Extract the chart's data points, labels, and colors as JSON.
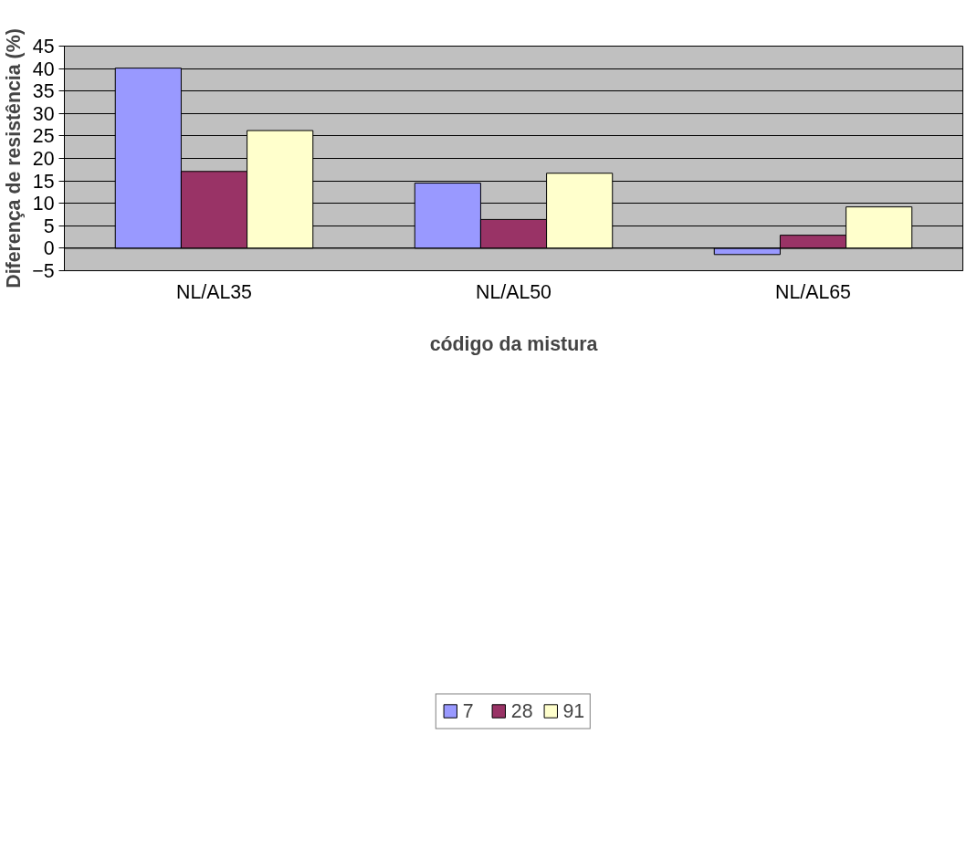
{
  "chart_data": {
    "type": "bar",
    "xlabel": "código da mistura",
    "ylabel": "Diferença de resistência (%)",
    "categories": [
      "NL/AL35",
      "NL/AL50",
      "NL/AL65"
    ],
    "series": [
      {
        "name": "7",
        "color": "#9999ff",
        "values": [
          40.1,
          14.5,
          -1.4
        ]
      },
      {
        "name": "28",
        "color": "#993366",
        "values": [
          17.1,
          6.4,
          2.9
        ]
      },
      {
        "name": "91",
        "color": "#ffffcc",
        "values": [
          26.2,
          16.7,
          9.2
        ]
      }
    ],
    "ylim": [
      -5,
      45
    ],
    "yticks": [
      -5,
      0,
      5,
      10,
      15,
      20,
      25,
      30,
      35,
      40,
      45
    ],
    "grid": "y",
    "legend": "bottom"
  }
}
